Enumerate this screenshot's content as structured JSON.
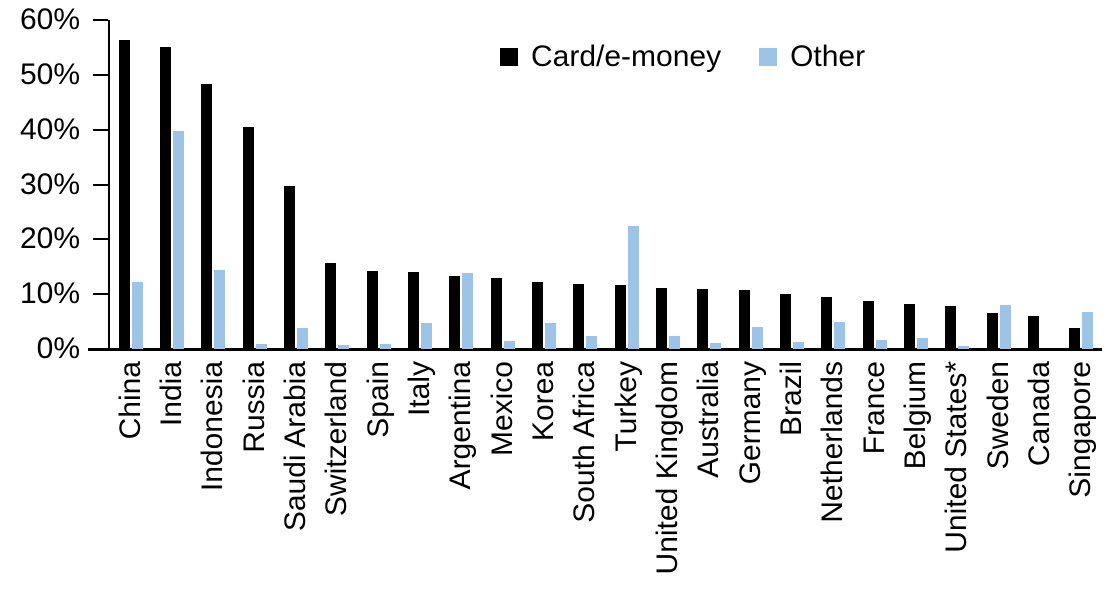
{
  "legend": {
    "card_label": "Card/e-money",
    "other_label": "Other"
  },
  "chart_data": {
    "type": "bar",
    "title": "",
    "xlabel": "",
    "ylabel": "",
    "ylim": [
      0,
      60
    ],
    "ytick_step": 10,
    "ytick_labels": [
      "0%",
      "10%",
      "20%",
      "30%",
      "40%",
      "50%",
      "60%"
    ],
    "grid": false,
    "legend_position": "top-center",
    "xlabel_rotation": -90,
    "categories": [
      "China",
      "India",
      "Indonesia",
      "Russia",
      "Saudi Arabia",
      "Switzerland",
      "Spain",
      "Italy",
      "Argentina",
      "Mexico",
      "Korea",
      "South Africa",
      "Turkey",
      "United Kingdom",
      "Australia",
      "Germany",
      "Brazil",
      "Netherlands",
      "France",
      "Belgium",
      "United States*",
      "Sweden",
      "Canada",
      "Singapore"
    ],
    "series": [
      {
        "name": "Card/e-money",
        "color": "#000000",
        "values": [
          56.3,
          55.1,
          48.3,
          40.4,
          29.8,
          15.6,
          14.2,
          14.1,
          13.4,
          12.9,
          12.2,
          11.8,
          11.6,
          11.1,
          10.9,
          10.7,
          10.0,
          9.4,
          8.8,
          8.3,
          7.9,
          6.6,
          6.1,
          3.9
        ]
      },
      {
        "name": "Other",
        "color": "#9DC3E6",
        "values": [
          12.2,
          39.7,
          14.4,
          0.9,
          3.8,
          0.8,
          1.0,
          4.7,
          13.9,
          1.4,
          4.7,
          2.4,
          22.4,
          2.3,
          1.1,
          4.0,
          1.3,
          4.9,
          1.6,
          2.1,
          0.5,
          8.1,
          0.0,
          6.7
        ]
      }
    ]
  }
}
